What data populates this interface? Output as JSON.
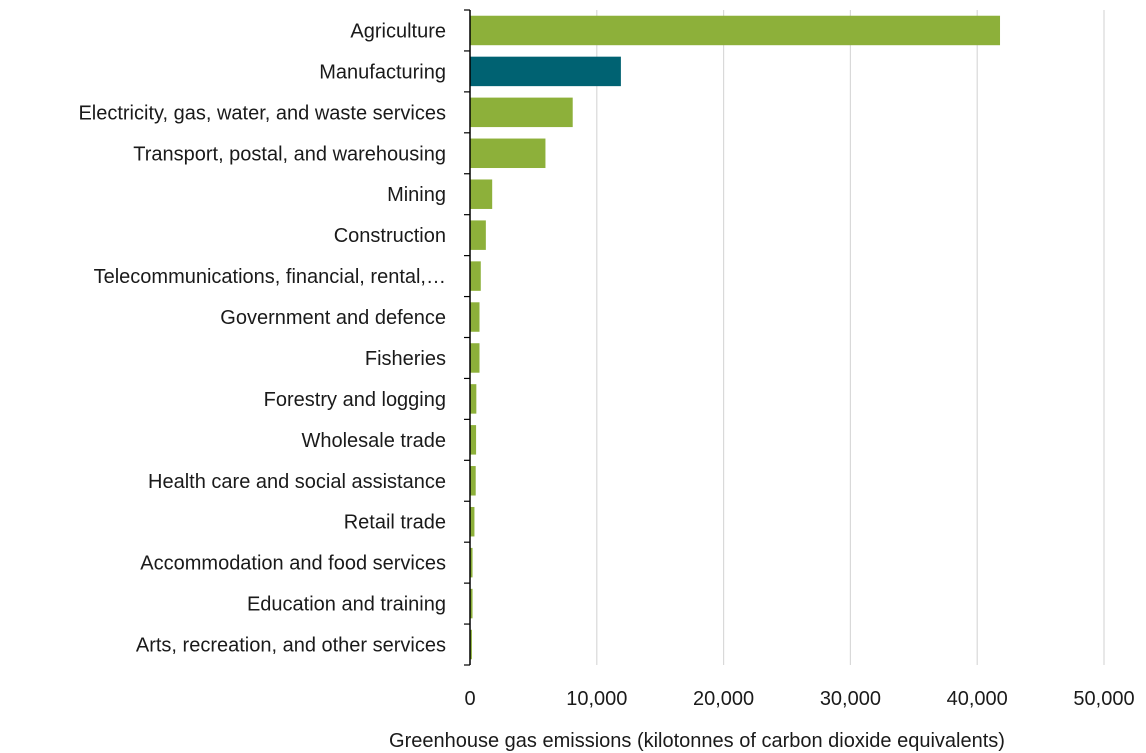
{
  "chart_data": {
    "type": "bar",
    "orientation": "horizontal",
    "categories": [
      "Agriculture",
      "Manufacturing",
      "Electricity, gas, water, and waste services",
      "Transport, postal, and warehousing",
      "Mining",
      "Construction",
      "Telecommunications, financial, rental,…",
      "Government and defence",
      "Fisheries",
      "Forestry and logging",
      "Wholesale trade",
      "Health care and social assistance",
      "Retail trade",
      "Accommodation and food services",
      "Education and training",
      "Arts, recreation, and other services"
    ],
    "values": [
      41800,
      11900,
      8100,
      5950,
      1750,
      1250,
      850,
      750,
      750,
      500,
      480,
      450,
      350,
      200,
      200,
      150
    ],
    "highlight_index": 1,
    "colors": {
      "default": "#8db03a",
      "highlight": "#006272",
      "grid": "#d9d9d9",
      "axis": "#000000"
    },
    "xlabel": "Greenhouse gas emissions (kilotonnes of carbon dioxide equivalents)",
    "ylabel": "",
    "title": "",
    "xlim": [
      0,
      50000
    ],
    "xticks": [
      0,
      10000,
      20000,
      30000,
      40000,
      50000
    ],
    "xtick_labels": [
      "0",
      "10,000",
      "20,000",
      "30,000",
      "40,000",
      "50,000"
    ],
    "grid": "vertical",
    "legend": "none"
  }
}
